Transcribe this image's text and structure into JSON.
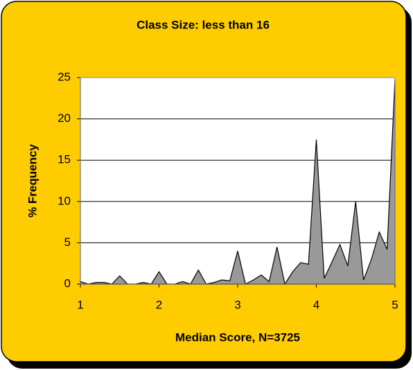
{
  "chart_data": {
    "type": "area",
    "title": "Class Size: less than 16",
    "xlabel": "Median Score, N=3725",
    "ylabel": "% Frequency",
    "x": [
      1.0,
      1.1,
      1.2,
      1.3,
      1.4,
      1.5,
      1.6,
      1.7,
      1.8,
      1.9,
      2.0,
      2.1,
      2.2,
      2.3,
      2.4,
      2.5,
      2.6,
      2.7,
      2.8,
      2.9,
      3.0,
      3.1,
      3.2,
      3.3,
      3.4,
      3.5,
      3.6,
      3.7,
      3.8,
      3.9,
      4.0,
      4.1,
      4.2,
      4.3,
      4.4,
      4.5,
      4.6,
      4.7,
      4.8,
      4.9,
      5.0
    ],
    "values": [
      0.3,
      0,
      0.2,
      0.2,
      0,
      1.0,
      0,
      0,
      0.2,
      0,
      1.5,
      0,
      0,
      0.3,
      0,
      1.7,
      0,
      0.2,
      0.5,
      0.4,
      4.0,
      0,
      0.5,
      1.1,
      0.3,
      4.5,
      0,
      1.5,
      2.6,
      2.4,
      17.5,
      0.7,
      2.7,
      4.8,
      2.2,
      10.0,
      0.5,
      3.0,
      6.3,
      4.2,
      24.8
    ],
    "color": "#999999",
    "xlim": [
      1,
      5
    ],
    "xticks": [
      1,
      2,
      3,
      4,
      5
    ],
    "ylim": [
      0,
      25
    ],
    "yticks": [
      0,
      5,
      10,
      15,
      20,
      25
    ],
    "grid": true
  }
}
